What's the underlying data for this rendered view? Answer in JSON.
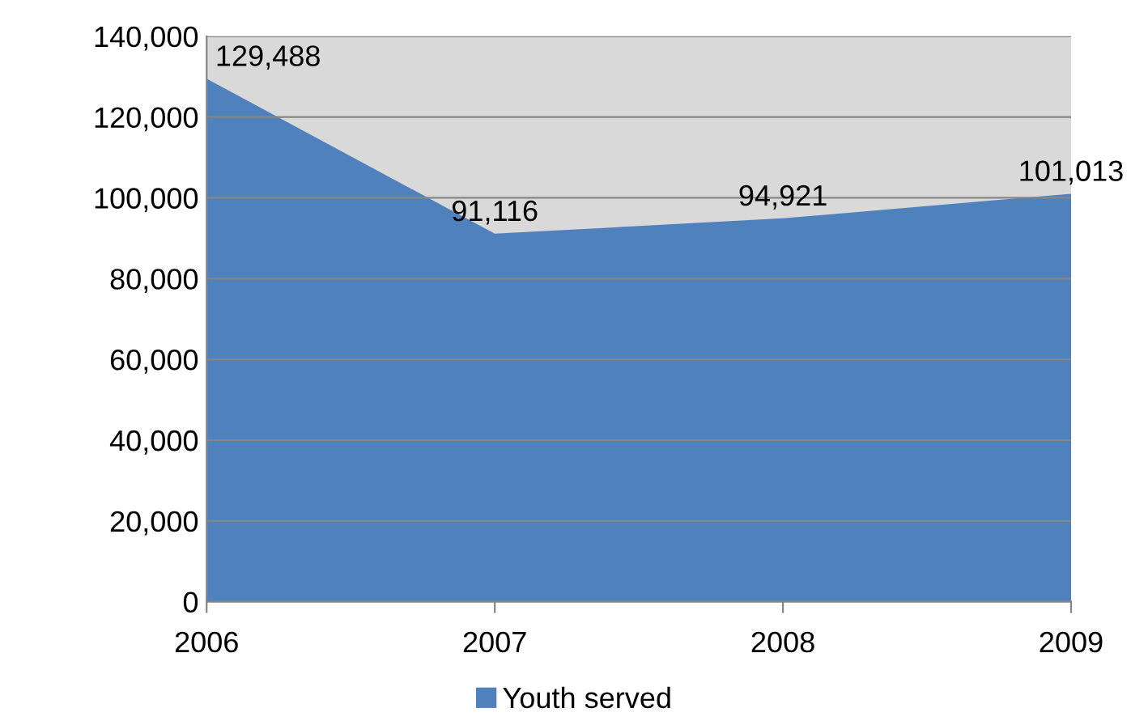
{
  "chart_data": {
    "type": "area",
    "categories": [
      "2006",
      "2007",
      "2008",
      "2009"
    ],
    "series": [
      {
        "name": "Youth served",
        "color": "#4f81bd",
        "values": [
          129488,
          91116,
          94921,
          101013
        ],
        "value_labels": [
          "129,488",
          "91,116",
          "94,921",
          "101,013"
        ]
      }
    ],
    "ylim": [
      0,
      140000
    ],
    "yticks": [
      0,
      {
        "value": 20000,
        "label": "20,000"
      },
      {
        "value": 40000,
        "label": "40,000"
      },
      {
        "value": 60000,
        "label": "60,000"
      },
      {
        "value": 80000,
        "label": "80,000"
      },
      {
        "value": 100000,
        "label": "100,000"
      },
      {
        "value": 120000,
        "label": "120,000"
      },
      {
        "value": 140000,
        "label": "140,000"
      }
    ],
    "grid": "y",
    "legend": "bottom"
  }
}
